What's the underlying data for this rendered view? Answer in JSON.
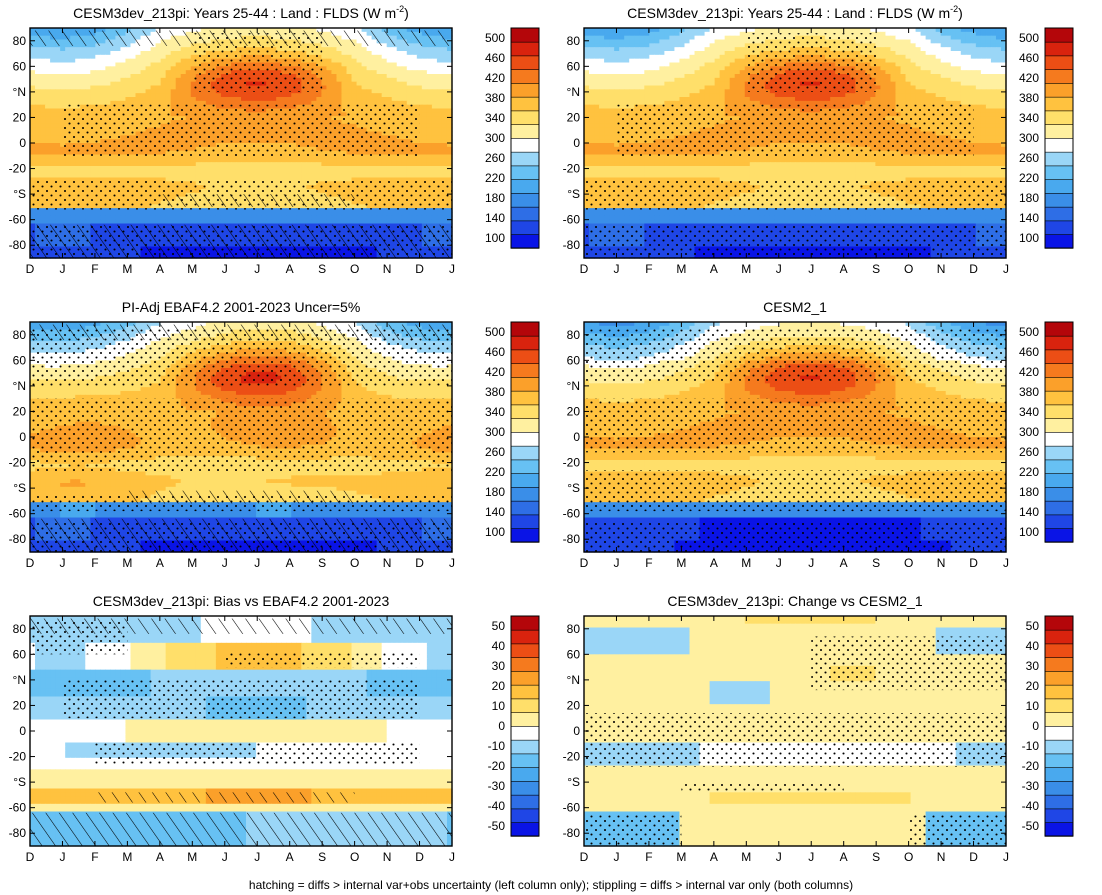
{
  "footnote": "hatching = diffs > internal var+obs uncertainty (left column only); stippling = diffs > internal var only (both columns)",
  "palettes": {
    "abs": [
      "#0a14e6",
      "#1f46e6",
      "#2e6ee6",
      "#3a8ee8",
      "#49a9ee",
      "#67c1f3",
      "#9ad6f7",
      "#ffffff",
      "#fff0a0",
      "#ffdf6a",
      "#ffc23f",
      "#fba02a",
      "#f57a1e",
      "#ec4e15",
      "#d9230e",
      "#b4060a"
    ],
    "diff": [
      "#0a14e6",
      "#1f46e6",
      "#2e6ee6",
      "#3a8ee8",
      "#49a9ee",
      "#67c1f3",
      "#9ad6f7",
      "#ffffff",
      "#fff0a0",
      "#ffdf6a",
      "#ffc23f",
      "#fba02a",
      "#f57a1e",
      "#ec4e15",
      "#d9230e",
      "#b4060a"
    ]
  },
  "chart_data": [
    {
      "type": "heatmap",
      "title": "CESM3dev_213pi: Years 25-44 : Land : FLDS (W m",
      "title_superscript": "-2",
      "title_suffix": ")",
      "variant": "model_a",
      "x_ticks": [
        "D",
        "J",
        "F",
        "M",
        "A",
        "M",
        "J",
        "J",
        "A",
        "S",
        "O",
        "N",
        "D",
        "J"
      ],
      "y_ticks": [
        "80",
        "60",
        "°N",
        "20",
        "0",
        "-20",
        "°S",
        "-60",
        "-80"
      ],
      "y_range": [
        -90,
        90
      ],
      "colorbar": {
        "levels": [
          "100",
          "140",
          "180",
          "220",
          "260",
          "300",
          "340",
          "380",
          "420",
          "460",
          "500"
        ],
        "palette": "abs",
        "vmin": 80,
        "vmax": 520
      },
      "hatching": true
    },
    {
      "type": "heatmap",
      "title": "CESM3dev_213pi: Years 25-44 : Land : FLDS (W m",
      "title_superscript": "-2",
      "title_suffix": ")",
      "variant": "model_a",
      "x_ticks": [
        "D",
        "J",
        "F",
        "M",
        "A",
        "M",
        "J",
        "J",
        "A",
        "S",
        "O",
        "N",
        "D",
        "J"
      ],
      "y_ticks": [
        "80",
        "60",
        "°N",
        "20",
        "0",
        "-20",
        "°S",
        "-60",
        "-80"
      ],
      "y_range": [
        -90,
        90
      ],
      "colorbar": {
        "levels": [
          "100",
          "140",
          "180",
          "220",
          "260",
          "300",
          "340",
          "380",
          "420",
          "460",
          "500"
        ],
        "palette": "abs",
        "vmin": 80,
        "vmax": 520
      },
      "hatching": false
    },
    {
      "type": "heatmap",
      "title": "PI-Adj EBAF4.2 2001-2023 Uncer=5%",
      "variant": "obs",
      "x_ticks": [
        "D",
        "J",
        "F",
        "M",
        "A",
        "M",
        "J",
        "J",
        "A",
        "S",
        "O",
        "N",
        "D",
        "J"
      ],
      "y_ticks": [
        "80",
        "60",
        "°N",
        "20",
        "0",
        "-20",
        "°S",
        "-60",
        "-80"
      ],
      "y_range": [
        -90,
        90
      ],
      "colorbar": {
        "levels": [
          "100",
          "140",
          "180",
          "220",
          "260",
          "300",
          "340",
          "380",
          "420",
          "460",
          "500"
        ],
        "palette": "abs",
        "vmin": 80,
        "vmax": 520
      },
      "hatching": true
    },
    {
      "type": "heatmap",
      "title": "CESM2_1",
      "variant": "model_b",
      "x_ticks": [
        "D",
        "J",
        "F",
        "M",
        "A",
        "M",
        "J",
        "J",
        "A",
        "S",
        "O",
        "N",
        "D",
        "J"
      ],
      "y_ticks": [
        "80",
        "60",
        "°N",
        "20",
        "0",
        "-20",
        "°S",
        "-60",
        "-80"
      ],
      "y_range": [
        -90,
        90
      ],
      "colorbar": {
        "levels": [
          "100",
          "140",
          "180",
          "220",
          "260",
          "300",
          "340",
          "380",
          "420",
          "460",
          "500"
        ],
        "palette": "abs",
        "vmin": 80,
        "vmax": 520
      },
      "hatching": false
    },
    {
      "type": "heatmap",
      "title": "CESM3dev_213pi: Bias vs EBAF4.2 2001-2023",
      "variant": "bias",
      "x_ticks": [
        "D",
        "J",
        "F",
        "M",
        "A",
        "M",
        "J",
        "J",
        "A",
        "S",
        "O",
        "N",
        "D",
        "J"
      ],
      "y_ticks": [
        "80",
        "60",
        "°N",
        "20",
        "0",
        "-20",
        "°S",
        "-60",
        "-80"
      ],
      "y_range": [
        -90,
        90
      ],
      "colorbar": {
        "levels": [
          "-50",
          "-40",
          "-30",
          "-20",
          "-10",
          "0",
          "10",
          "20",
          "30",
          "40",
          "50"
        ],
        "palette": "diff",
        "vmin": -55,
        "vmax": 55
      },
      "hatching": true
    },
    {
      "type": "heatmap",
      "title": "CESM3dev_213pi: Change vs CESM2_1",
      "variant": "change",
      "x_ticks": [
        "D",
        "J",
        "F",
        "M",
        "A",
        "M",
        "J",
        "J",
        "A",
        "S",
        "O",
        "N",
        "D",
        "J"
      ],
      "y_ticks": [
        "80",
        "60",
        "°N",
        "20",
        "0",
        "-20",
        "°S",
        "-60",
        "-80"
      ],
      "y_range": [
        -90,
        90
      ],
      "colorbar": {
        "levels": [
          "-50",
          "-40",
          "-30",
          "-20",
          "-10",
          "0",
          "10",
          "20",
          "30",
          "40",
          "50"
        ],
        "palette": "diff",
        "vmin": -55,
        "vmax": 55
      },
      "hatching": false
    }
  ]
}
